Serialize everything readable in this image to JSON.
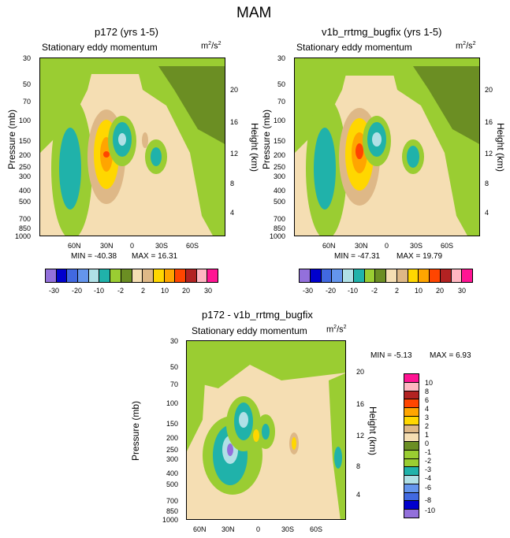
{
  "page_title": "MAM",
  "colors": {
    "levels": [
      "#9370db",
      "#0000cd",
      "#4169e1",
      "#6495ed",
      "#b0e0e6",
      "#20b2aa",
      "#9acd32",
      "#6b8e23",
      "#f5deb3",
      "#deb887",
      "#ffd700",
      "#ffa500",
      "#ff4500",
      "#b22222",
      "#ffb6c1",
      "#ff1493"
    ]
  },
  "chart_data": [
    {
      "type": "heatmap",
      "title": "p172 (yrs 1-5)",
      "subtitle": "Stationary eddy momentum",
      "units_base": "m",
      "units_sup1": "2",
      "units_mid": "/s",
      "units_sup2": "2",
      "ylabel": "Pressure (mb)",
      "y2label": "Height (km)",
      "x_ticks": [
        "60N",
        "30N",
        "0",
        "30S",
        "60S"
      ],
      "y_ticks": [
        "30",
        "50",
        "70",
        "100",
        "150",
        "200",
        "250",
        "300",
        "400",
        "500",
        "700",
        "850",
        "1000"
      ],
      "y2_ticks": [
        "20",
        "16",
        "12",
        "8",
        "4"
      ],
      "min_label": "MIN = -40.38",
      "max_label": "MAX =  16.31",
      "colorbar_labels": [
        "-30",
        "-20",
        "-10",
        "-2",
        "2",
        "10",
        "20",
        "30"
      ],
      "colorbar_levels": [
        -30,
        -20,
        -15,
        -10,
        -6,
        -2,
        -1,
        1,
        2,
        6,
        10,
        15,
        20,
        25,
        30
      ]
    },
    {
      "type": "heatmap",
      "title": "v1b_rrtmg_bugfix (yrs 1-5)",
      "subtitle": "Stationary eddy momentum",
      "units_base": "m",
      "units_sup1": "2",
      "units_mid": "/s",
      "units_sup2": "2",
      "ylabel": "Pressure (mb)",
      "y2label": "Height (km)",
      "x_ticks": [
        "60N",
        "30N",
        "0",
        "30S",
        "60S"
      ],
      "y_ticks": [
        "30",
        "50",
        "70",
        "100",
        "150",
        "200",
        "250",
        "300",
        "400",
        "500",
        "700",
        "850",
        "1000"
      ],
      "y2_ticks": [
        "20",
        "16",
        "12",
        "8",
        "4"
      ],
      "min_label": "MIN = -47.31",
      "max_label": "MAX =  19.79",
      "colorbar_labels": [
        "-30",
        "-20",
        "-10",
        "-2",
        "2",
        "10",
        "20",
        "30"
      ],
      "colorbar_levels": [
        -30,
        -20,
        -15,
        -10,
        -6,
        -2,
        -1,
        1,
        2,
        6,
        10,
        15,
        20,
        25,
        30
      ]
    },
    {
      "type": "heatmap",
      "title": "p172 - v1b_rrtmg_bugfix",
      "subtitle": "Stationary eddy momentum",
      "units_base": "m",
      "units_sup1": "2",
      "units_mid": "/s",
      "units_sup2": "2",
      "ylabel": "Pressure (mb)",
      "y2label": "Height (km)",
      "x_ticks": [
        "60N",
        "30N",
        "0",
        "30S",
        "60S"
      ],
      "y_ticks": [
        "30",
        "50",
        "70",
        "100",
        "150",
        "200",
        "250",
        "300",
        "400",
        "500",
        "700",
        "850",
        "1000"
      ],
      "y2_ticks": [
        "20",
        "16",
        "12",
        "8",
        "4"
      ],
      "min_label": "MIN =  -5.13",
      "max_label": "MAX =   6.93",
      "colorbar_labels": [
        "10",
        "8",
        "6",
        "4",
        "3",
        "2",
        "1",
        "0",
        "-1",
        "-2",
        "-3",
        "-4",
        "-6",
        "-8",
        "-10"
      ]
    }
  ]
}
